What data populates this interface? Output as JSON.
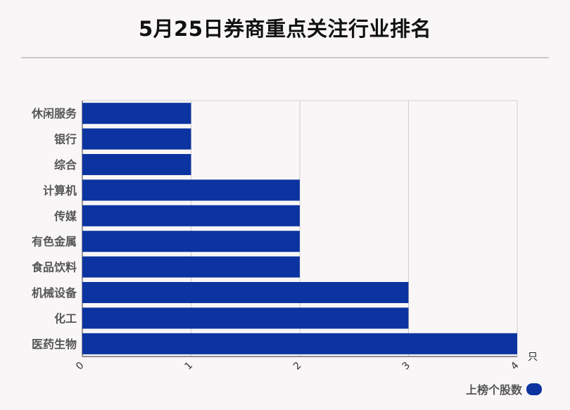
{
  "chart_data": {
    "type": "bar",
    "orientation": "horizontal",
    "title": "5月25日券商重点关注行业排名",
    "categories": [
      "休闲服务",
      "银行",
      "综合",
      "计算机",
      "传媒",
      "有色金属",
      "食品饮料",
      "机械设备",
      "化工",
      "医药生物"
    ],
    "series": [
      {
        "name": "上榜个股数",
        "values": [
          1,
          1,
          1,
          2,
          2,
          2,
          2,
          3,
          3,
          4
        ]
      }
    ],
    "xlim": [
      0,
      4
    ],
    "xticks": [
      "0",
      "1",
      "2",
      "3",
      "4"
    ],
    "xunit": "只",
    "grid": true,
    "legend": "bottom-right",
    "colors": {
      "bar": "#0c34a0"
    }
  }
}
